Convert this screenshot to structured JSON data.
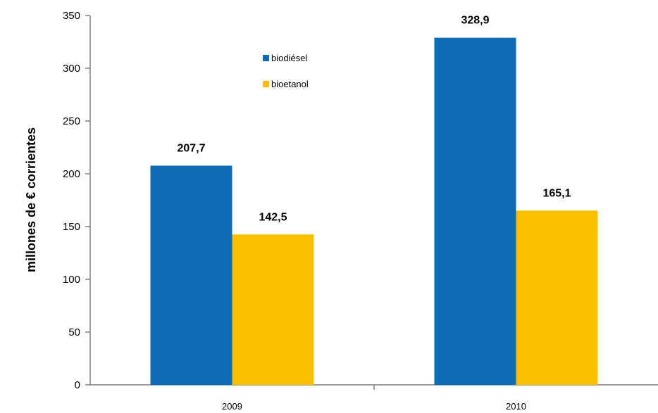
{
  "chart_data": {
    "type": "bar",
    "categories": [
      "2009",
      "2010"
    ],
    "series": [
      {
        "name": "biodiésel",
        "values": [
          207.7,
          328.9
        ],
        "labels": [
          "207,7",
          "328,9"
        ],
        "color": "#0D6CB5"
      },
      {
        "name": "bioetanol",
        "values": [
          142.5,
          165.1
        ],
        "labels": [
          "142,5",
          "165,1"
        ],
        "color": "#FAC000"
      }
    ],
    "title": "",
    "xlabel": "",
    "ylabel": "millones de € corrientes",
    "ylim": [
      0,
      350
    ],
    "yticks": [
      0,
      50,
      100,
      150,
      200,
      250,
      300,
      350
    ],
    "grid": false,
    "legend_position": "top-center"
  }
}
